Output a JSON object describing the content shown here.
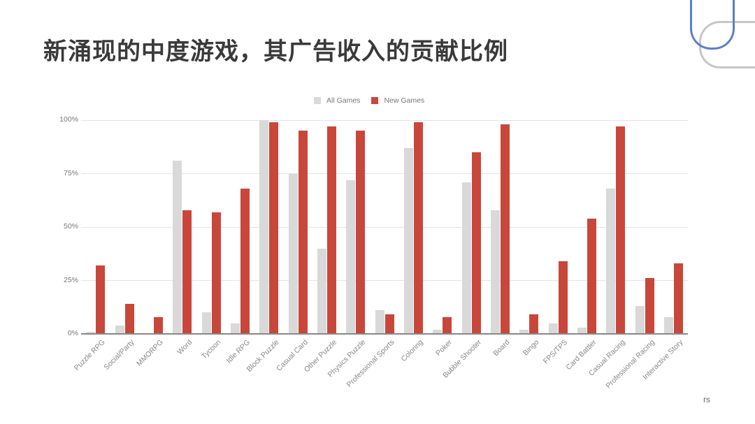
{
  "slide": {
    "title": "新涌现的中度游戏，其广告收入的贡献比例",
    "footer_fragment": "rs"
  },
  "colors": {
    "all_games": "#d9d9d9",
    "new_games": "#c9473a",
    "deco_blue": "#5b7fc8",
    "deco_gray": "#c6c6c6"
  },
  "legend": {
    "items": [
      {
        "label": "All Games",
        "color": "#d9d9d9"
      },
      {
        "label": "New Games",
        "color": "#c9473a"
      }
    ]
  },
  "axis": {
    "y_ticks": [
      "100%",
      "75%",
      "50%",
      "25%",
      "0%"
    ]
  },
  "chart_data": {
    "type": "bar",
    "title": "新涌现的中度游戏，其广告收入的贡献比例",
    "xlabel": "",
    "ylabel": "",
    "ylim": [
      0,
      100
    ],
    "y_tick_labels": [
      "0%",
      "25%",
      "50%",
      "75%",
      "100%"
    ],
    "grid": true,
    "legend_position": "top",
    "categories": [
      "Puzzle RPG",
      "Social/Party",
      "MMORPG",
      "Word",
      "Tycoon",
      "Idle RPG",
      "Block Puzzle",
      "Casual Card",
      "Other Puzzle",
      "Physics Puzzle",
      "Professional Sports",
      "Coloring",
      "Poker",
      "Bubble Shooter",
      "Board",
      "Bingo",
      "FPS/TPS",
      "Card Battler",
      "Casual Racing",
      "Professional Racing",
      "Interactive Story"
    ],
    "series": [
      {
        "name": "All Games",
        "color": "#d9d9d9",
        "values": [
          1,
          4,
          0,
          81,
          10,
          5,
          100,
          75,
          40,
          72,
          11,
          87,
          2,
          71,
          58,
          2,
          5,
          3,
          68,
          13,
          8
        ]
      },
      {
        "name": "New Games",
        "color": "#c9473a",
        "values": [
          32,
          14,
          8,
          58,
          57,
          68,
          99,
          95,
          97,
          95,
          9,
          99,
          8,
          85,
          98,
          9,
          34,
          54,
          97,
          26,
          33
        ]
      }
    ]
  }
}
